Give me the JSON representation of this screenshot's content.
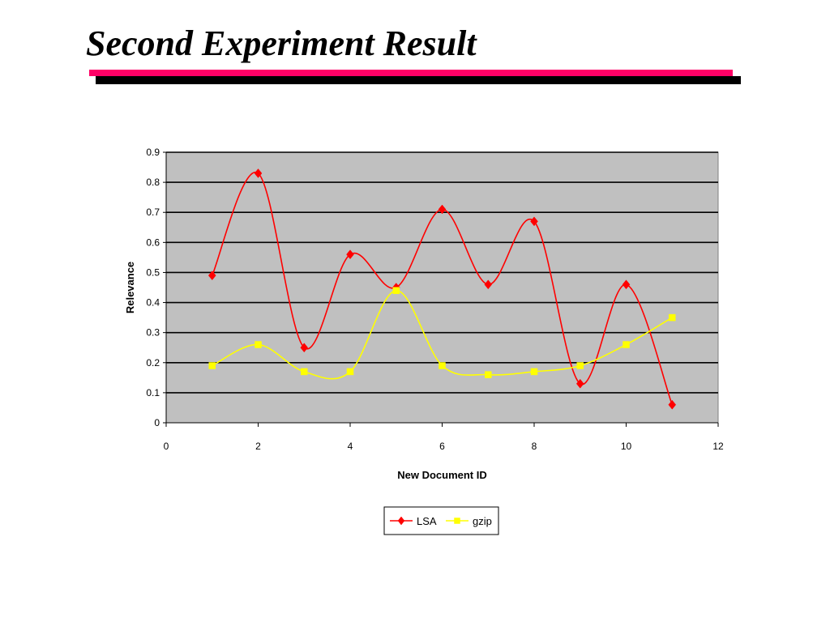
{
  "slide": {
    "title": "Second Experiment Result"
  },
  "colors": {
    "accent_bar": "#ff0066",
    "shadow_bar": "#000000",
    "plot_background": "#c0c0c0",
    "lsa": "#ff0000",
    "gzip": "#ffff00"
  },
  "chart_data": {
    "type": "line",
    "title": "",
    "xlabel": "New Document ID",
    "ylabel": "Relevance",
    "xlim": [
      0,
      12
    ],
    "ylim": [
      0,
      0.9
    ],
    "xticks": [
      "0",
      "2",
      "4",
      "6",
      "8",
      "10",
      "12"
    ],
    "yticks": [
      "0",
      "0.1",
      "0.2",
      "0.3",
      "0.4",
      "0.5",
      "0.6",
      "0.7",
      "0.8",
      "0.9"
    ],
    "grid": "horizontal",
    "smoothed": true,
    "legend_position": "bottom",
    "x": [
      1,
      2,
      3,
      4,
      5,
      6,
      7,
      8,
      9,
      10,
      11
    ],
    "series": [
      {
        "name": "LSA",
        "marker": "diamond",
        "color": "#ff0000",
        "values": [
          0.49,
          0.83,
          0.25,
          0.56,
          0.45,
          0.71,
          0.46,
          0.67,
          0.13,
          0.46,
          0.06
        ]
      },
      {
        "name": "gzip",
        "marker": "square",
        "color": "#ffff00",
        "values": [
          0.19,
          0.26,
          0.17,
          0.17,
          0.44,
          0.19,
          0.16,
          0.17,
          0.19,
          0.26,
          0.35
        ]
      }
    ]
  }
}
